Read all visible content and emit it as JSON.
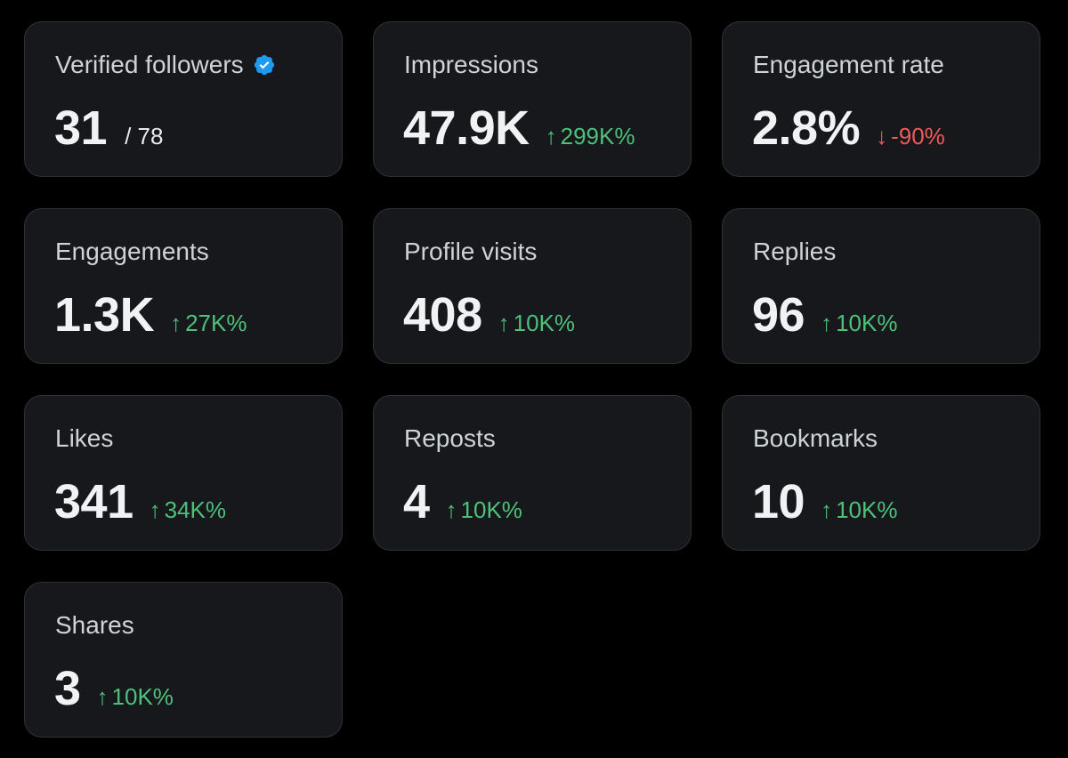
{
  "colors": {
    "background": "#000000",
    "card": "#16181c",
    "up": "#4ec07a",
    "down": "#ef5a5a",
    "verified": "#1d9bf0"
  },
  "cards": {
    "verified_followers": {
      "label": "Verified followers",
      "value": "31",
      "total": "/ 78",
      "icon": "verified-badge-icon"
    },
    "impressions": {
      "label": "Impressions",
      "value": "47.9K",
      "arrow": "↑",
      "change": "299K%"
    },
    "engagement_rate": {
      "label": "Engagement rate",
      "value": "2.8%",
      "arrow": "↓",
      "change": "-90%"
    },
    "engagements": {
      "label": "Engagements",
      "value": "1.3K",
      "arrow": "↑",
      "change": "27K%"
    },
    "profile_visits": {
      "label": "Profile visits",
      "value": "408",
      "arrow": "↑",
      "change": "10K%"
    },
    "replies": {
      "label": "Replies",
      "value": "96",
      "arrow": "↑",
      "change": "10K%"
    },
    "likes": {
      "label": "Likes",
      "value": "341",
      "arrow": "↑",
      "change": "34K%"
    },
    "reposts": {
      "label": "Reposts",
      "value": "4",
      "arrow": "↑",
      "change": "10K%"
    },
    "bookmarks": {
      "label": "Bookmarks",
      "value": "10",
      "arrow": "↑",
      "change": "10K%"
    },
    "shares": {
      "label": "Shares",
      "value": "3",
      "arrow": "↑",
      "change": "10K%"
    }
  }
}
